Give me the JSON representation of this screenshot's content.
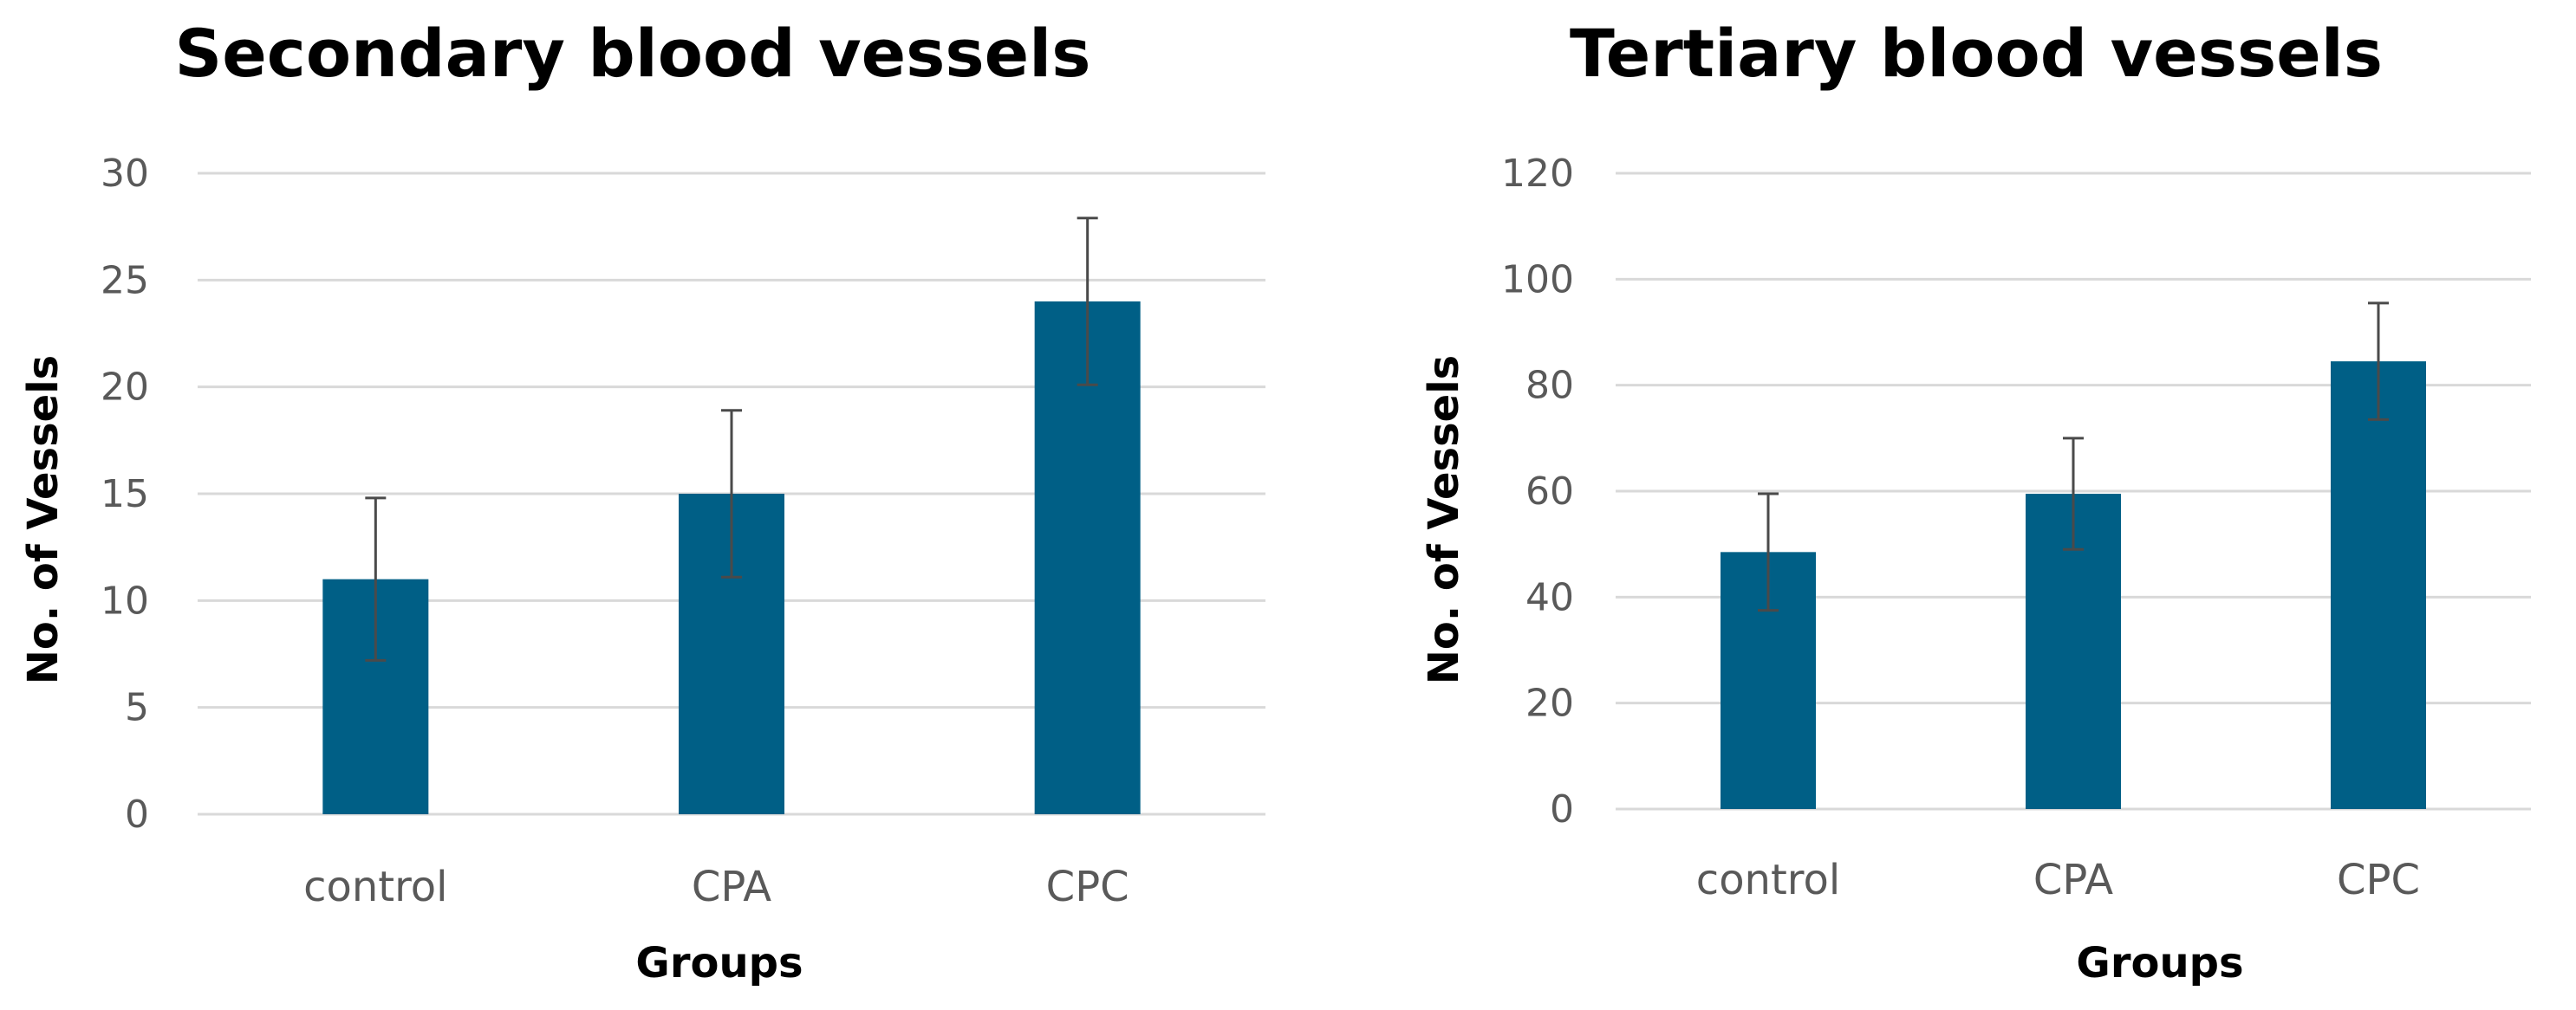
{
  "colors": {
    "bar": "#005f86",
    "grid": "#d9d9d9",
    "error_bar": "#4a4a4a",
    "tick_text": "#595959"
  },
  "chart_data": [
    {
      "type": "bar",
      "title": "Secondary blood vessels",
      "xlabel": "Groups",
      "ylabel": "No. of Vessels",
      "categories": [
        "control",
        "CPA",
        "CPC"
      ],
      "values": [
        11,
        15,
        24
      ],
      "error": [
        3.8,
        3.9,
        3.9
      ],
      "ylim": [
        0,
        30
      ],
      "yticks": [
        0,
        5,
        10,
        15,
        20,
        25,
        30
      ],
      "grid": true,
      "legend": "none"
    },
    {
      "type": "bar",
      "title": "Tertiary blood vessels",
      "xlabel": "Groups",
      "ylabel": "No. of Vessels",
      "categories": [
        "control",
        "CPA",
        "CPC"
      ],
      "values": [
        48.5,
        59.5,
        84.5
      ],
      "error": [
        11,
        10.5,
        11
      ],
      "ylim": [
        0,
        120
      ],
      "yticks": [
        0,
        20,
        40,
        60,
        80,
        100,
        120
      ],
      "grid": true,
      "legend": "none"
    }
  ]
}
